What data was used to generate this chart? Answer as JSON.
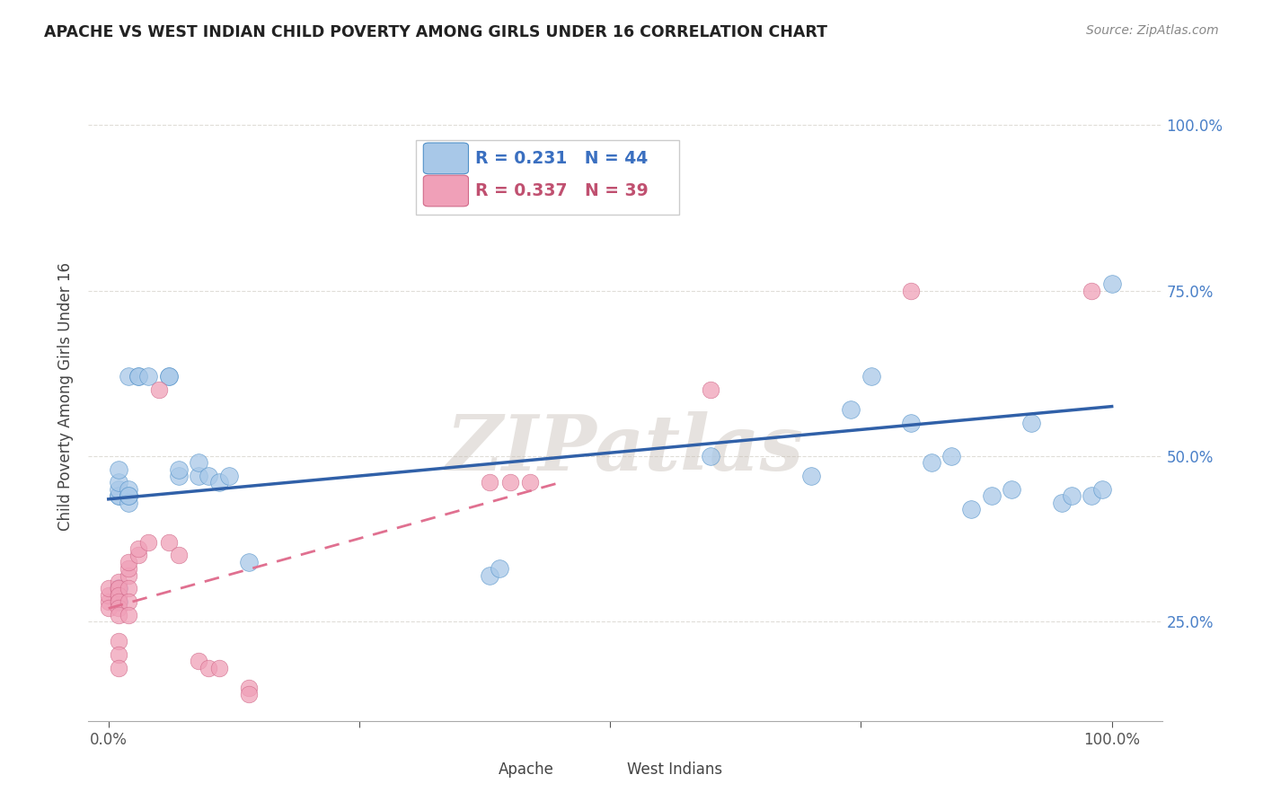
{
  "title": "APACHE VS WEST INDIAN CHILD POVERTY AMONG GIRLS UNDER 16 CORRELATION CHART",
  "source": "Source: ZipAtlas.com",
  "ylabel": "Child Poverty Among Girls Under 16",
  "watermark": "ZIPatlas",
  "apache_R": 0.231,
  "apache_N": 44,
  "west_indian_R": 0.337,
  "west_indian_N": 39,
  "apache_color": "#a8c8e8",
  "apache_edge_color": "#5090c8",
  "west_indian_color": "#f0a0b8",
  "west_indian_edge_color": "#d06888",
  "apache_line_color": "#3060a8",
  "west_indian_line_color": "#e07090",
  "background_color": "#ffffff",
  "grid_color": "#e0ddd8",
  "apache_x": [
    0.02,
    0.03,
    0.03,
    0.04,
    0.06,
    0.06,
    0.01,
    0.01,
    0.01,
    0.01,
    0.01,
    0.02,
    0.02,
    0.02,
    0.02,
    0.02,
    0.01,
    0.01,
    0.07,
    0.07,
    0.09,
    0.09,
    0.1,
    0.11,
    0.12,
    0.14,
    0.38,
    0.39,
    0.6,
    0.7,
    0.74,
    0.76,
    0.8,
    0.82,
    0.84,
    0.86,
    0.88,
    0.9,
    0.92,
    0.95,
    0.96,
    0.98,
    0.99,
    1.0
  ],
  "apache_y": [
    0.62,
    0.62,
    0.62,
    0.62,
    0.62,
    0.62,
    0.44,
    0.44,
    0.45,
    0.46,
    0.48,
    0.44,
    0.44,
    0.45,
    0.43,
    0.44,
    0.3,
    0.28,
    0.47,
    0.48,
    0.47,
    0.49,
    0.47,
    0.46,
    0.47,
    0.34,
    0.32,
    0.33,
    0.5,
    0.47,
    0.57,
    0.62,
    0.55,
    0.49,
    0.5,
    0.42,
    0.44,
    0.45,
    0.55,
    0.43,
    0.44,
    0.44,
    0.45,
    0.76
  ],
  "west_indian_x": [
    0.0,
    0.0,
    0.0,
    0.0,
    0.01,
    0.01,
    0.01,
    0.01,
    0.01,
    0.01,
    0.01,
    0.01,
    0.01,
    0.01,
    0.01,
    0.01,
    0.02,
    0.02,
    0.02,
    0.02,
    0.02,
    0.02,
    0.03,
    0.03,
    0.04,
    0.05,
    0.06,
    0.07,
    0.09,
    0.1,
    0.11,
    0.14,
    0.14,
    0.38,
    0.4,
    0.42,
    0.6,
    0.8,
    0.98
  ],
  "west_indian_y": [
    0.28,
    0.29,
    0.3,
    0.27,
    0.28,
    0.29,
    0.3,
    0.31,
    0.3,
    0.29,
    0.28,
    0.27,
    0.26,
    0.22,
    0.2,
    0.18,
    0.32,
    0.33,
    0.34,
    0.3,
    0.28,
    0.26,
    0.35,
    0.36,
    0.37,
    0.6,
    0.37,
    0.35,
    0.19,
    0.18,
    0.18,
    0.15,
    0.14,
    0.46,
    0.46,
    0.46,
    0.6,
    0.75,
    0.75
  ],
  "apache_line_x0": 0.0,
  "apache_line_x1": 1.0,
  "apache_line_y0": 0.435,
  "apache_line_y1": 0.575,
  "wi_line_x0": 0.0,
  "wi_line_x1": 0.45,
  "wi_line_y0": 0.27,
  "wi_line_y1": 0.46,
  "xlim": [
    -0.02,
    1.05
  ],
  "ylim": [
    0.1,
    1.08
  ],
  "yticks": [
    0.25,
    0.5,
    0.75,
    1.0
  ],
  "yticklabels": [
    "25.0%",
    "50.0%",
    "75.0%",
    "100.0%"
  ],
  "xticks": [
    0.0,
    0.25,
    0.5,
    0.75,
    1.0
  ],
  "xticklabels": [
    "0.0%",
    "",
    "",
    "",
    "100.0%"
  ]
}
